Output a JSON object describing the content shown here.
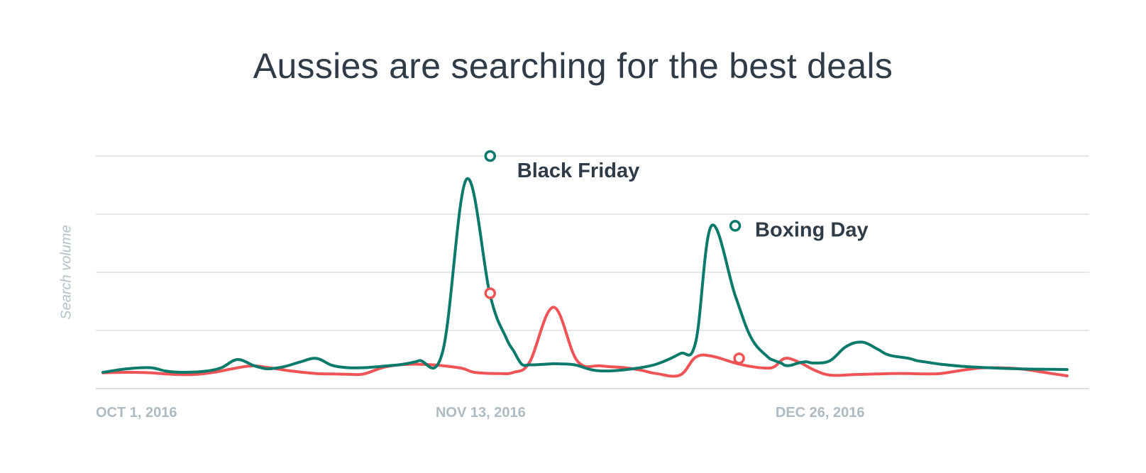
{
  "chart_data": {
    "type": "line",
    "title": "Aussies are searching for the best deals",
    "ylabel": "Search volume",
    "xlabel": "",
    "x_tick_labels": [
      "OCT 1, 2016",
      "NOV 13, 2016",
      "DEC 26, 2016"
    ],
    "x_ticks": [
      0,
      43,
      86
    ],
    "xlim": [
      0,
      123
    ],
    "ylim": [
      0,
      100
    ],
    "grid": true,
    "colors": {
      "series_a": "#0b7a6b",
      "series_b": "#ef5356",
      "text": "#2f3b47",
      "axis_text": "#aebac2",
      "grid": "#d5dadd"
    },
    "series": [
      {
        "color": "#0b7a6b",
        "x": [
          0,
          3,
          6,
          8,
          10,
          13,
          15,
          17,
          19,
          20,
          21,
          23,
          25,
          27,
          29,
          31,
          33,
          34,
          36,
          38,
          40,
          43,
          46,
          49,
          51,
          52,
          53,
          54,
          55,
          56,
          57,
          58,
          59,
          60,
          62,
          64,
          67,
          70,
          73,
          75,
          77,
          80,
          82,
          84,
          85,
          85.8,
          86.3,
          87,
          88,
          89,
          90,
          92,
          94,
          96,
          98,
          99,
          100,
          102,
          103,
          104,
          106,
          109,
          112,
          116,
          120,
          122
        ],
        "y": [
          7,
          8.5,
          9,
          7.5,
          7,
          7.5,
          9,
          12.5,
          10,
          9,
          8.5,
          9.5,
          11.5,
          13,
          10,
          9,
          9,
          9.2,
          9.8,
          10.5,
          12,
          16,
          90,
          40,
          22,
          16,
          10.5,
          10.2,
          10.3,
          10.5,
          10.7,
          10.6,
          10.5,
          10,
          8,
          7.6,
          8.5,
          10.5,
          15,
          20,
          70,
          40,
          22,
          14,
          12,
          11,
          10,
          10,
          11,
          11.5,
          11,
          12,
          18,
          20,
          17,
          15,
          14,
          13,
          12,
          11.5,
          10.5,
          9.5,
          9,
          8.5,
          8.3,
          8.2
        ]
      },
      {
        "color": "#ef5356",
        "x": [
          0,
          3,
          6,
          8,
          10,
          12,
          14,
          16,
          18,
          19,
          20,
          22,
          24,
          27,
          29,
          31,
          33,
          36,
          40,
          45,
          47,
          50,
          52,
          54,
          57,
          60,
          63,
          66,
          68,
          70,
          73,
          75,
          77,
          80,
          82,
          84,
          85,
          86.3,
          88,
          90,
          92,
          95,
          98,
          100,
          102,
          104,
          106,
          108,
          110,
          112,
          116,
          120,
          122
        ],
        "y": [
          6.8,
          7,
          6.8,
          6.3,
          6,
          6.2,
          7,
          8.3,
          9.5,
          9.8,
          9.5,
          8.5,
          7.5,
          6.5,
          6.3,
          6.2,
          6.3,
          9.5,
          10.5,
          9,
          7,
          6.5,
          7,
          11.5,
          35,
          12,
          9.8,
          9,
          8,
          6.5,
          5.8,
          13.5,
          14,
          11,
          9.5,
          8.8,
          9.5,
          13,
          11.5,
          8,
          5.8,
          6,
          6.3,
          6.5,
          6.5,
          6.3,
          6.5,
          7.5,
          8.5,
          9,
          8.5,
          6.5,
          5.5
        ]
      }
    ],
    "annotations": [
      {
        "label": "Black Friday",
        "x": 49,
        "y": 100
      },
      {
        "label": "Boxing Day",
        "x": 80,
        "y": 70
      }
    ],
    "markers": [
      {
        "x": 49,
        "y": 100,
        "color": "#0b7a6b"
      },
      {
        "x": 49,
        "y": 41,
        "color": "#ef5356"
      },
      {
        "x": 80,
        "y": 70,
        "color": "#0b7a6b"
      },
      {
        "x": 80.5,
        "y": 13,
        "color": "#ef5356"
      }
    ]
  }
}
